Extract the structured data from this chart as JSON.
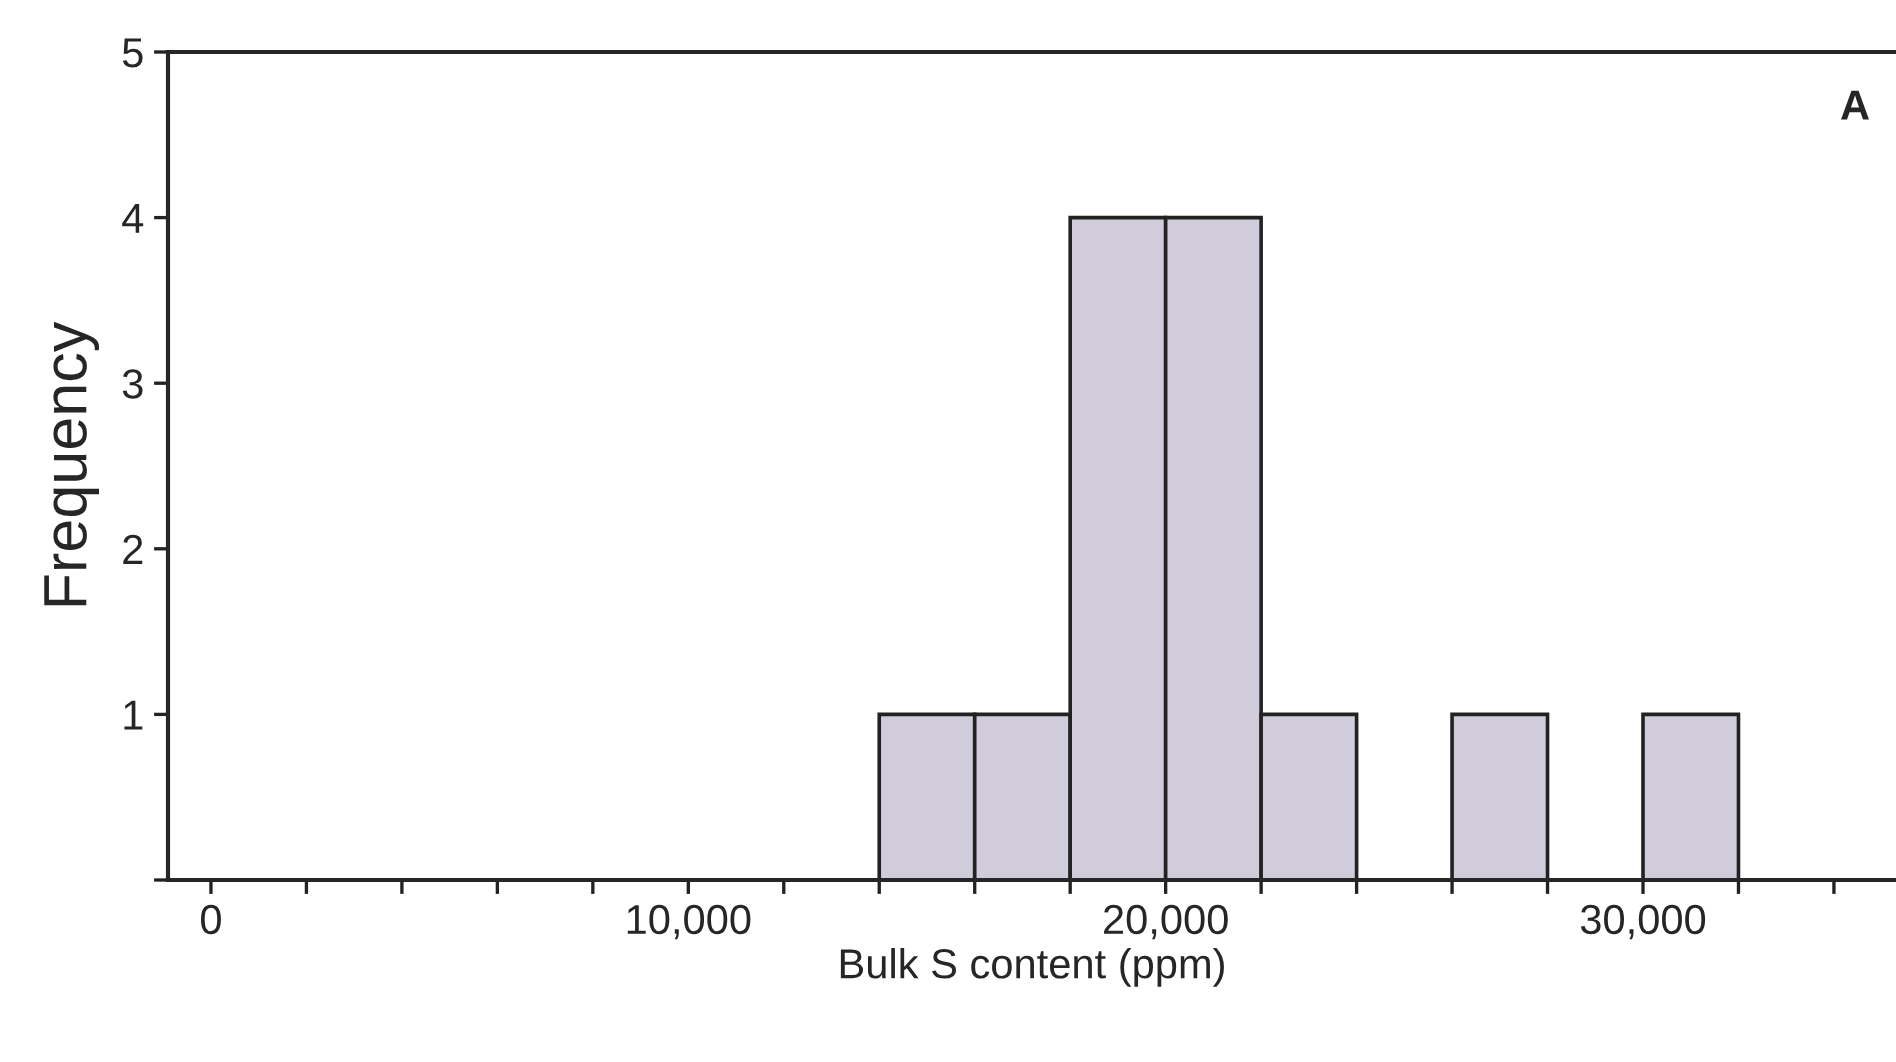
{
  "chart_data": {
    "type": "histogram",
    "xlabel": "Bulk S content (ppm)",
    "ylabel": "Frequency",
    "bins": [
      14000,
      16000,
      18000,
      20000,
      22000,
      24000,
      26000,
      28000,
      30000,
      32000
    ],
    "values": [
      1,
      1,
      4,
      4,
      1,
      0,
      1,
      0,
      1
    ],
    "color": "#d0ccdb",
    "xlim": [
      -900,
      35300
    ],
    "xticks": [
      0,
      {
        "value": 2000,
        "label": null
      },
      {
        "value": 4000,
        "label": null
      },
      {
        "value": 6000,
        "label": null
      },
      {
        "value": 8000,
        "label": null
      },
      {
        "value": 10000,
        "label": "10,000"
      },
      {
        "value": 12000,
        "label": null
      },
      {
        "value": 14000,
        "label": null
      },
      {
        "value": 16000,
        "label": null
      },
      {
        "value": 18000,
        "label": null
      },
      {
        "value": 20000,
        "label": "20,000"
      },
      {
        "value": 22000,
        "label": null
      },
      {
        "value": 24000,
        "label": null
      },
      {
        "value": 26000,
        "label": null
      },
      {
        "value": 28000,
        "label": null
      },
      {
        "value": 30000,
        "label": "30,000"
      },
      {
        "value": 32000,
        "label": null
      },
      {
        "value": 34000,
        "label": null
      }
    ],
    "ylim": [
      0,
      5
    ],
    "yticks": [
      {
        "value": 0,
        "label": null
      },
      1,
      2,
      3,
      4,
      5
    ],
    "grid": false,
    "annotations": [
      "A"
    ]
  }
}
